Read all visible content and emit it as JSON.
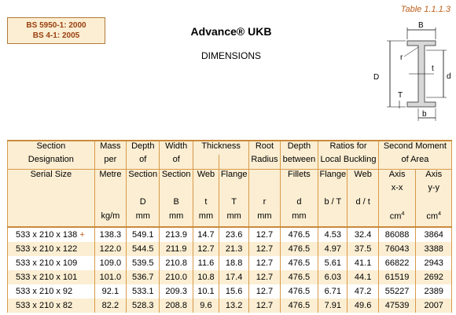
{
  "table_ref": "Table 1.1.1.3",
  "standards": [
    "BS 5950-1: 2000",
    "BS 4-1: 2005"
  ],
  "title": "Advance® UKB",
  "subtitle": "DIMENSIONS",
  "diagram_labels": {
    "B": "B",
    "D": "D",
    "d": "d",
    "r": "r",
    "t": "t",
    "T": "T",
    "b": "b"
  },
  "headers": {
    "section": [
      "Section",
      "Designation",
      "Serial Size"
    ],
    "mass": [
      "Mass",
      "per",
      "Metre",
      "kg/m"
    ],
    "depth": [
      "Depth",
      "of",
      "Section",
      "D",
      "mm"
    ],
    "width": [
      "Width",
      "of",
      "Section",
      "B",
      "mm"
    ],
    "thickness": "Thickness",
    "web": [
      "Web",
      "t",
      "mm"
    ],
    "flange": [
      "Flange",
      "T",
      "mm"
    ],
    "root": [
      "Root",
      "Radius",
      "r",
      "mm"
    ],
    "depth_between": [
      "Depth",
      "between",
      "Fillets",
      "d",
      "mm"
    ],
    "ratios": [
      "Ratios for",
      "Local Buckling"
    ],
    "ratio_flange": [
      "Flange",
      "b / T"
    ],
    "ratio_web": [
      "Web",
      "d / t"
    ],
    "smoa": [
      "Second Moment",
      "of Area"
    ],
    "axis_x": [
      "Axis",
      "x-x",
      "cm",
      "4"
    ],
    "axis_y": [
      "Axis",
      "y-y",
      "cm",
      "4"
    ]
  },
  "rows": [
    {
      "designation": "533 x 210 x 138",
      "plus": "+",
      "mass": "138.3",
      "D": "549.1",
      "B": "213.9",
      "t": "14.7",
      "T": "23.6",
      "r": "12.7",
      "d": "476.5",
      "bT": "4.53",
      "dt": "32.4",
      "Ixx": "86088",
      "Iyy": "3864"
    },
    {
      "designation": "533 x 210 x 122",
      "plus": "",
      "mass": "122.0",
      "D": "544.5",
      "B": "211.9",
      "t": "12.7",
      "T": "21.3",
      "r": "12.7",
      "d": "476.5",
      "bT": "4.97",
      "dt": "37.5",
      "Ixx": "76043",
      "Iyy": "3388"
    },
    {
      "designation": "533 x 210 x 109",
      "plus": "",
      "mass": "109.0",
      "D": "539.5",
      "B": "210.8",
      "t": "11.6",
      "T": "18.8",
      "r": "12.7",
      "d": "476.5",
      "bT": "5.61",
      "dt": "41.1",
      "Ixx": "66822",
      "Iyy": "2943"
    },
    {
      "designation": "533 x 210 x 101",
      "plus": "",
      "mass": "101.0",
      "D": "536.7",
      "B": "210.0",
      "t": "10.8",
      "T": "17.4",
      "r": "12.7",
      "d": "476.5",
      "bT": "6.03",
      "dt": "44.1",
      "Ixx": "61519",
      "Iyy": "2692"
    },
    {
      "designation": "533 x 210 x 92",
      "plus": "",
      "mass": "92.1",
      "D": "533.1",
      "B": "209.3",
      "t": "10.1",
      "T": "15.6",
      "r": "12.7",
      "d": "476.5",
      "bT": "6.71",
      "dt": "47.2",
      "Ixx": "55227",
      "Iyy": "2389"
    },
    {
      "designation": "533 x 210 x 82",
      "plus": "",
      "mass": "82.2",
      "D": "528.3",
      "B": "208.8",
      "t": "9.6",
      "T": "13.2",
      "r": "12.7",
      "d": "476.5",
      "bT": "7.91",
      "dt": "49.6",
      "Ixx": "47539",
      "Iyy": "2007"
    }
  ]
}
